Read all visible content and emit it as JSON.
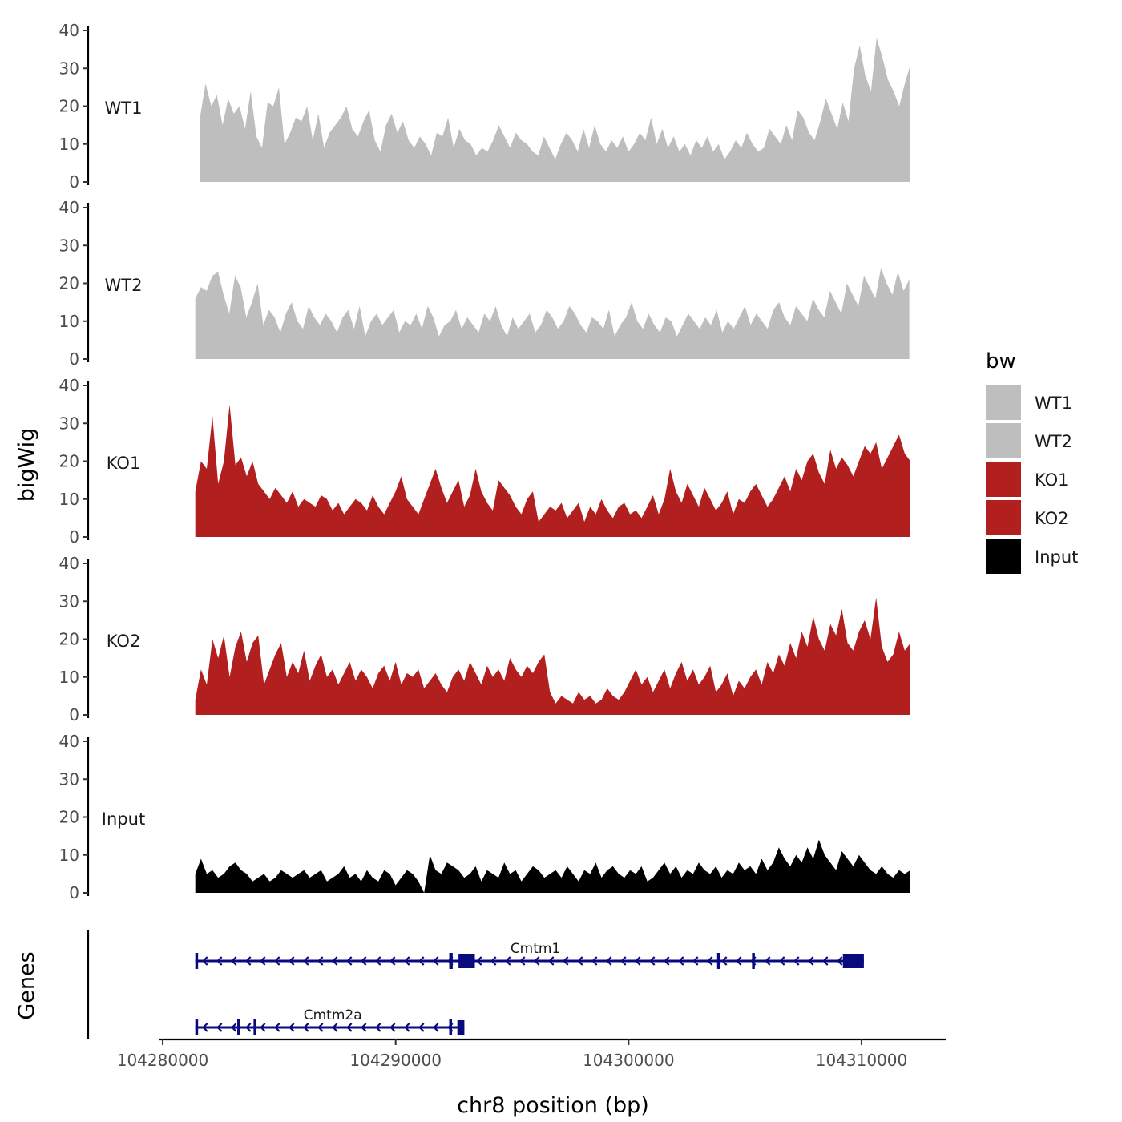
{
  "chart_data": {
    "type": "area",
    "ylabel": "bigWig",
    "xlabel": "chr8 position (bp)",
    "xlim": [
      104277000,
      104313000
    ],
    "ylim": [
      0,
      40
    ],
    "y_ticks": [
      "0",
      "10",
      "20",
      "30",
      "40"
    ],
    "x_ticks": [
      {
        "value": 104280000,
        "label": "104280000"
      },
      {
        "value": 104290000,
        "label": "104290000"
      },
      {
        "value": 104300000,
        "label": "104300000"
      },
      {
        "value": 104310000,
        "label": "104310000"
      }
    ],
    "gene_track_label": "Genes",
    "tracks": [
      {
        "name": "WT1",
        "color": "#bebebe",
        "start": 104281600,
        "end": 104312100,
        "values": [
          17,
          26,
          20,
          23,
          15,
          22,
          18,
          20,
          14,
          24,
          12,
          9,
          21,
          20,
          25,
          10,
          13,
          17,
          16,
          20,
          11,
          18,
          9,
          13,
          15,
          17,
          20,
          14,
          12,
          16,
          19,
          11,
          8,
          15,
          18,
          13,
          16,
          11,
          9,
          12,
          10,
          7,
          13,
          12,
          17,
          9,
          14,
          11,
          10,
          7,
          9,
          8,
          11,
          15,
          12,
          9,
          13,
          11,
          10,
          8,
          7,
          12,
          9,
          6,
          10,
          13,
          11,
          8,
          14,
          9,
          15,
          10,
          8,
          11,
          9,
          12,
          8,
          10,
          13,
          11,
          17,
          10,
          14,
          9,
          12,
          8,
          10,
          7,
          11,
          9,
          12,
          8,
          10,
          6,
          8,
          11,
          9,
          13,
          10,
          8,
          9,
          14,
          12,
          10,
          15,
          11,
          19,
          17,
          13,
          11,
          16,
          22,
          18,
          14,
          21,
          16,
          30,
          36,
          28,
          24,
          38,
          33,
          27,
          24,
          20,
          26,
          31
        ]
      },
      {
        "name": "WT2",
        "color": "#bebebe",
        "start": 104281400,
        "end": 104312050,
        "values": [
          16,
          19,
          18,
          22,
          23,
          17,
          12,
          22,
          19,
          11,
          15,
          20,
          9,
          13,
          11,
          7,
          12,
          15,
          10,
          8,
          14,
          11,
          9,
          12,
          10,
          7,
          11,
          13,
          8,
          14,
          6,
          10,
          12,
          9,
          11,
          13,
          7,
          10,
          9,
          12,
          8,
          14,
          11,
          6,
          9,
          10,
          13,
          8,
          11,
          9,
          7,
          12,
          10,
          14,
          9,
          6,
          11,
          8,
          10,
          12,
          7,
          9,
          13,
          11,
          8,
          10,
          14,
          12,
          9,
          7,
          11,
          10,
          8,
          13,
          6,
          9,
          11,
          15,
          10,
          8,
          12,
          9,
          7,
          11,
          10,
          6,
          9,
          12,
          10,
          8,
          11,
          9,
          13,
          7,
          10,
          8,
          11,
          14,
          9,
          12,
          10,
          8,
          13,
          15,
          11,
          9,
          14,
          12,
          10,
          16,
          13,
          11,
          18,
          15,
          12,
          20,
          17,
          14,
          22,
          19,
          16,
          24,
          20,
          17,
          23,
          18,
          21
        ]
      },
      {
        "name": "KO1",
        "color": "#b21f1f",
        "start": 104281400,
        "end": 104312100,
        "values": [
          12,
          20,
          18,
          32,
          14,
          20,
          35,
          19,
          21,
          16,
          20,
          14,
          12,
          10,
          13,
          11,
          9,
          12,
          8,
          10,
          9,
          8,
          11,
          10,
          7,
          9,
          6,
          8,
          10,
          9,
          7,
          11,
          8,
          6,
          9,
          12,
          16,
          10,
          8,
          6,
          10,
          14,
          18,
          13,
          9,
          12,
          15,
          8,
          11,
          18,
          12,
          9,
          7,
          15,
          13,
          11,
          8,
          6,
          10,
          12,
          4,
          6,
          8,
          7,
          9,
          5,
          7,
          9,
          4,
          8,
          6,
          10,
          7,
          5,
          8,
          9,
          6,
          7,
          5,
          8,
          11,
          6,
          10,
          18,
          12,
          9,
          14,
          11,
          8,
          13,
          10,
          7,
          9,
          12,
          6,
          10,
          9,
          12,
          14,
          11,
          8,
          10,
          13,
          16,
          12,
          18,
          15,
          20,
          22,
          17,
          14,
          23,
          18,
          21,
          19,
          16,
          20,
          24,
          22,
          25,
          18,
          21,
          24,
          27,
          22,
          20
        ]
      },
      {
        "name": "KO2",
        "color": "#b21f1f",
        "start": 104281400,
        "end": 104312100,
        "values": [
          4,
          12,
          8,
          20,
          15,
          21,
          10,
          18,
          22,
          14,
          19,
          21,
          8,
          12,
          16,
          19,
          10,
          14,
          11,
          17,
          9,
          13,
          16,
          10,
          12,
          8,
          11,
          14,
          9,
          12,
          10,
          7,
          11,
          13,
          9,
          14,
          8,
          11,
          10,
          12,
          7,
          9,
          11,
          8,
          6,
          10,
          12,
          9,
          14,
          11,
          8,
          13,
          10,
          12,
          9,
          15,
          12,
          10,
          13,
          11,
          14,
          16,
          6,
          3,
          5,
          4,
          3,
          6,
          4,
          5,
          3,
          4,
          7,
          5,
          4,
          6,
          9,
          12,
          8,
          10,
          6,
          9,
          12,
          7,
          11,
          14,
          9,
          12,
          8,
          10,
          13,
          6,
          8,
          11,
          5,
          9,
          7,
          10,
          12,
          8,
          14,
          11,
          16,
          13,
          19,
          15,
          22,
          18,
          26,
          20,
          17,
          24,
          21,
          28,
          19,
          17,
          22,
          25,
          20,
          31,
          18,
          14,
          16,
          22,
          17,
          19
        ]
      },
      {
        "name": "Input",
        "color": "#000000",
        "start": 104281400,
        "end": 104312100,
        "values": [
          5,
          9,
          5,
          6,
          4,
          5,
          7,
          8,
          6,
          5,
          3,
          4,
          5,
          3,
          4,
          6,
          5,
          4,
          5,
          6,
          4,
          5,
          6,
          3,
          4,
          5,
          7,
          4,
          5,
          3,
          6,
          4,
          3,
          6,
          5,
          2,
          4,
          6,
          5,
          3,
          0,
          10,
          6,
          5,
          8,
          7,
          6,
          4,
          5,
          7,
          3,
          6,
          5,
          4,
          8,
          5,
          6,
          3,
          5,
          7,
          6,
          4,
          5,
          6,
          4,
          7,
          5,
          3,
          6,
          5,
          8,
          4,
          6,
          7,
          5,
          4,
          6,
          5,
          7,
          3,
          4,
          6,
          8,
          5,
          7,
          4,
          6,
          5,
          8,
          6,
          5,
          7,
          4,
          6,
          5,
          8,
          6,
          7,
          5,
          9,
          6,
          8,
          12,
          9,
          7,
          10,
          8,
          12,
          9,
          14,
          10,
          8,
          6,
          11,
          9,
          7,
          10,
          8,
          6,
          5,
          7,
          5,
          4,
          6,
          5,
          6
        ]
      }
    ],
    "genes": [
      {
        "name": "Cmtm1",
        "start": 104281400,
        "end": 104310100,
        "strand": "-",
        "exons": [
          [
            104281400,
            104281500
          ],
          [
            104292300,
            104292450
          ],
          [
            104292700,
            104293400
          ],
          [
            104303800,
            104303880
          ],
          [
            104305300,
            104305380
          ],
          [
            104309200,
            104310100
          ]
        ]
      },
      {
        "name": "Cmtm2a",
        "start": 104281400,
        "end": 104292950,
        "strand": "-",
        "exons": [
          [
            104281400,
            104281480
          ],
          [
            104283200,
            104283260
          ],
          [
            104283900,
            104283960
          ],
          [
            104292300,
            104292400
          ],
          [
            104292650,
            104292950
          ]
        ]
      }
    ],
    "legend": {
      "title": "bw",
      "position": "right",
      "items": [
        {
          "label": "WT1",
          "color": "#bebebe"
        },
        {
          "label": "WT2",
          "color": "#bebebe"
        },
        {
          "label": "KO1",
          "color": "#b21f1f"
        },
        {
          "label": "KO2",
          "color": "#b21f1f"
        },
        {
          "label": "Input",
          "color": "#000000"
        }
      ]
    },
    "gene_color": "#0a0a7f"
  }
}
